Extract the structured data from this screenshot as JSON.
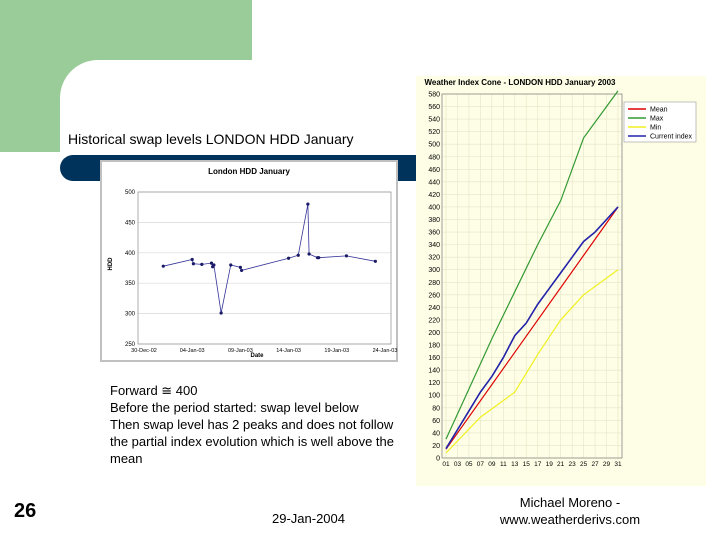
{
  "slide": {
    "title": "Historical swap levels LONDON HDD January",
    "body_lines": [
      "Forward ≅ 400",
      "Before the period started: swap level below",
      "Then swap level has 2 peaks and does not follow",
      "the partial index evolution which is well above the",
      "mean"
    ],
    "slide_number": "26",
    "date": "29-Jan-2004",
    "author_line1": "Michael Moreno -",
    "author_line2": "www.weatherderivs.com"
  },
  "colors": {
    "green_block": "#99cc99",
    "navy_bar": "#00335c",
    "swap_series": "#333399",
    "mean": "#dd0000",
    "max": "#339933",
    "min": "#f0f020",
    "current_index": "#2222aa"
  },
  "chart_data": [
    {
      "type": "line",
      "title": "London HDD January",
      "xlabel": "Date",
      "ylabel": "HDD",
      "grid": "horizontal",
      "ylim": [
        250,
        500
      ],
      "yticks": [
        "500",
        "450",
        "400",
        "350",
        "300",
        "250"
      ],
      "xticks": [
        "30-Dec-02",
        "04-Jan-03",
        "09-Jan-03",
        "14-Jan-03",
        "19-Jan-03",
        "24-Jan-03"
      ],
      "series": [
        {
          "x": [
            "01-Jan-03",
            "04-Jan-03",
            "04-Jan-03",
            "05-Jan-03",
            "06-Jan-03",
            "06-Jan-03",
            "06-Jan-03",
            "07-Jan-03",
            "08-Jan-03",
            "09-Jan-03",
            "09-Jan-03",
            "14-Jan-03",
            "15-Jan-03",
            "16-Jan-03",
            "16-Jan-03",
            "17-Jan-03",
            "17-Jan-03",
            "20-Jan-03",
            "23-Jan-03"
          ],
          "values": [
            378,
            389,
            382,
            381,
            383,
            377,
            380,
            301,
            380,
            376,
            371,
            391,
            396,
            480,
            398,
            392,
            392,
            395,
            386
          ]
        }
      ]
    },
    {
      "type": "line",
      "title": "Weather Index Cone - LONDON HDD January 2003",
      "ylim": [
        0,
        580
      ],
      "yticks": [
        "580",
        "560",
        "540",
        "520",
        "500",
        "480",
        "460",
        "440",
        "420",
        "400",
        "380",
        "360",
        "340",
        "320",
        "300",
        "280",
        "260",
        "240",
        "220",
        "200",
        "180",
        "160",
        "140",
        "120",
        "100",
        "80",
        "60",
        "40",
        "20",
        "0"
      ],
      "xticks": [
        "01",
        "03",
        "05",
        "07",
        "09",
        "11",
        "13",
        "15",
        "17",
        "19",
        "21",
        "23",
        "25",
        "27",
        "29",
        "31"
      ],
      "legend": "top-right",
      "series": [
        {
          "name": "Mean",
          "x": [
            1,
            31
          ],
          "values": [
            14,
            400
          ]
        },
        {
          "name": "Max",
          "x": [
            1,
            5,
            9,
            13,
            17,
            21,
            25,
            31
          ],
          "values": [
            30,
            110,
            190,
            265,
            340,
            410,
            510,
            585
          ]
        },
        {
          "name": "Min",
          "x": [
            1,
            7,
            13,
            17,
            21,
            25,
            31
          ],
          "values": [
            8,
            65,
            105,
            165,
            220,
            260,
            300
          ]
        },
        {
          "name": "Current index",
          "x": [
            1,
            3,
            5,
            7,
            9,
            11,
            13,
            15,
            17,
            19,
            21,
            23,
            25,
            27,
            29,
            31
          ],
          "values": [
            15,
            45,
            75,
            105,
            130,
            160,
            195,
            215,
            245,
            270,
            295,
            320,
            345,
            360,
            380,
            400
          ]
        }
      ]
    }
  ]
}
